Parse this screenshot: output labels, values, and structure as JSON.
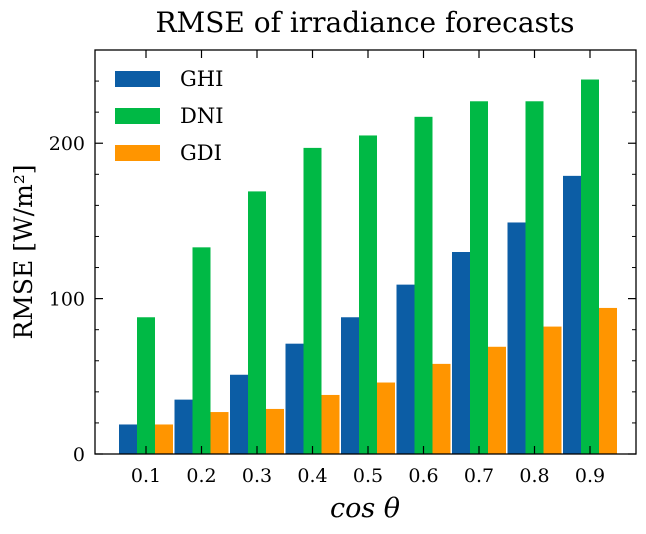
{
  "chart_data": {
    "type": "bar",
    "title": "RMSE of irradiance forecasts",
    "xlabel": "cos θ",
    "ylabel": "RMSE [W/m²]",
    "categories": [
      "0.1",
      "0.2",
      "0.3",
      "0.4",
      "0.5",
      "0.6",
      "0.7",
      "0.8",
      "0.9"
    ],
    "series": [
      {
        "name": "GHI",
        "color": "#0C5DA5",
        "values": [
          19,
          35,
          51,
          71,
          88,
          109,
          130,
          149,
          179
        ]
      },
      {
        "name": "DNI",
        "color": "#00B945",
        "values": [
          88,
          133,
          169,
          197,
          205,
          217,
          227,
          227,
          241
        ]
      },
      {
        "name": "GDI",
        "color": "#FF9500",
        "values": [
          19,
          27,
          29,
          38,
          46,
          58,
          69,
          82,
          94
        ]
      }
    ],
    "ylim": [
      0,
      260
    ],
    "yticks": [
      0,
      100,
      200
    ],
    "grid": false,
    "legend_position": "top-left"
  }
}
